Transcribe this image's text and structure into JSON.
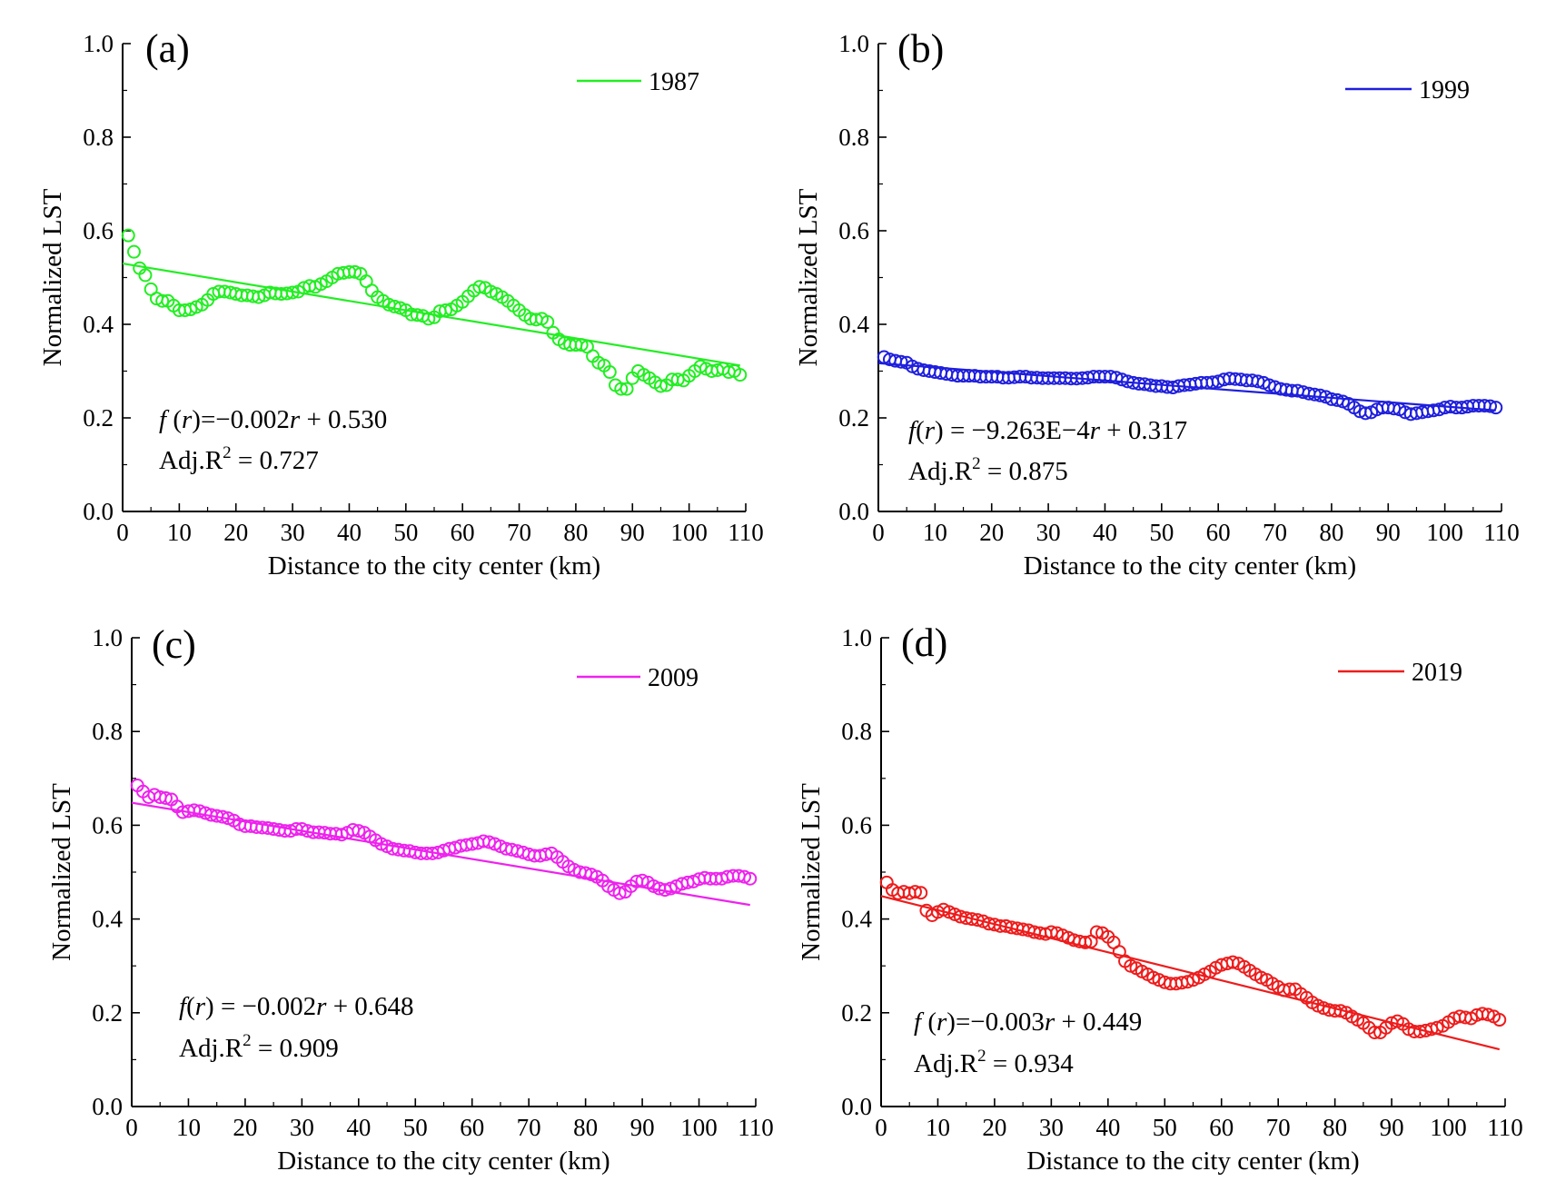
{
  "chart_data": [
    {
      "type": "scatter",
      "panel_label": "(a)",
      "xlabel": "Distance to the city center (km)",
      "ylabel": "Normalized LST",
      "xlim": [
        0,
        110
      ],
      "ylim": [
        0,
        1.0
      ],
      "xticks": [
        0,
        10,
        20,
        30,
        40,
        50,
        60,
        70,
        80,
        90,
        100,
        110
      ],
      "yticks": [
        0.0,
        0.2,
        0.4,
        0.6,
        0.8,
        1.0
      ],
      "xtick_labels": [
        "0",
        "10",
        "20",
        "30",
        "40",
        "50",
        "60",
        "70",
        "80",
        "90",
        "100",
        "110"
      ],
      "ytick_labels": [
        "0.0",
        "0.2",
        "0.4",
        "0.6",
        "0.8",
        "1.0"
      ],
      "legend": "1987",
      "color": "#22ee22",
      "fit": {
        "slope": -0.002,
        "intercept": 0.53
      },
      "annotation": {
        "formula": "f (r)=−0.002r + 0.530",
        "r2": "Adj.R² = 0.727"
      },
      "x": [
        1,
        2,
        3,
        4,
        5,
        6,
        7,
        8,
        9,
        10,
        11,
        12,
        13,
        14,
        15,
        16,
        17,
        18,
        19,
        20,
        21,
        22,
        23,
        24,
        25,
        26,
        27,
        28,
        29,
        30,
        31,
        32,
        33,
        34,
        35,
        36,
        37,
        38,
        39,
        40,
        41,
        42,
        43,
        44,
        45,
        46,
        47,
        48,
        49,
        50,
        51,
        52,
        53,
        54,
        55,
        56,
        57,
        58,
        59,
        60,
        61,
        62,
        63,
        64,
        65,
        66,
        67,
        68,
        69,
        70,
        71,
        72,
        73,
        74,
        75,
        76,
        77,
        78,
        79,
        80,
        81,
        82,
        83,
        84,
        85,
        86,
        87,
        88,
        89,
        90,
        91,
        92,
        93,
        94,
        95,
        96,
        97,
        98,
        99,
        100,
        101,
        102,
        103,
        104,
        105,
        106,
        107,
        108,
        109
      ],
      "values": [
        0.59,
        0.555,
        0.52,
        0.505,
        0.475,
        0.455,
        0.45,
        0.45,
        0.44,
        0.43,
        0.43,
        0.432,
        0.437,
        0.442,
        0.452,
        0.465,
        0.47,
        0.47,
        0.468,
        0.465,
        0.462,
        0.462,
        0.46,
        0.458,
        0.462,
        0.468,
        0.466,
        0.465,
        0.466,
        0.468,
        0.47,
        0.478,
        0.482,
        0.48,
        0.486,
        0.492,
        0.5,
        0.508,
        0.51,
        0.512,
        0.512,
        0.508,
        0.492,
        0.472,
        0.458,
        0.45,
        0.442,
        0.438,
        0.435,
        0.43,
        0.421,
        0.42,
        0.418,
        0.412,
        0.415,
        0.428,
        0.43,
        0.432,
        0.44,
        0.448,
        0.46,
        0.472,
        0.48,
        0.478,
        0.47,
        0.465,
        0.458,
        0.45,
        0.44,
        0.43,
        0.42,
        0.412,
        0.41,
        0.412,
        0.405,
        0.382,
        0.368,
        0.36,
        0.356,
        0.356,
        0.356,
        0.352,
        0.332,
        0.318,
        0.312,
        0.298,
        0.27,
        0.262,
        0.262,
        0.285,
        0.3,
        0.292,
        0.285,
        0.276,
        0.268,
        0.27,
        0.282,
        0.282,
        0.28,
        0.29,
        0.3,
        0.31,
        0.305,
        0.3,
        0.302,
        0.305,
        0.298,
        0.3,
        0.292
      ]
    },
    {
      "type": "scatter",
      "panel_label": "(b)",
      "xlabel": "Distance to the city center (km)",
      "ylabel": "Normalized LST",
      "xlim": [
        0,
        110
      ],
      "ylim": [
        0,
        1.0
      ],
      "xticks": [
        0,
        10,
        20,
        30,
        40,
        50,
        60,
        70,
        80,
        90,
        100,
        110
      ],
      "yticks": [
        0.0,
        0.2,
        0.4,
        0.6,
        0.8,
        1.0
      ],
      "xtick_labels": [
        "0",
        "10",
        "20",
        "30",
        "40",
        "50",
        "60",
        "70",
        "80",
        "90",
        "100",
        "110"
      ],
      "ytick_labels": [
        "0.0",
        "0.2",
        "0.4",
        "0.6",
        "0.8",
        "1.0"
      ],
      "legend": "1999",
      "color": "#1f1fdd",
      "fit": {
        "slope": -0.0009263,
        "intercept": 0.317
      },
      "annotation": {
        "formula": "f(r) = −9.263E−4r + 0.317",
        "r2": "Adj.R² = 0.875"
      },
      "x": [
        1,
        2,
        3,
        4,
        5,
        6,
        7,
        8,
        9,
        10,
        11,
        12,
        13,
        14,
        15,
        16,
        17,
        18,
        19,
        20,
        21,
        22,
        23,
        24,
        25,
        26,
        27,
        28,
        29,
        30,
        31,
        32,
        33,
        34,
        35,
        36,
        37,
        38,
        39,
        40,
        41,
        42,
        43,
        44,
        45,
        46,
        47,
        48,
        49,
        50,
        51,
        52,
        53,
        54,
        55,
        56,
        57,
        58,
        59,
        60,
        61,
        62,
        63,
        64,
        65,
        66,
        67,
        68,
        69,
        70,
        71,
        72,
        73,
        74,
        75,
        76,
        77,
        78,
        79,
        80,
        81,
        82,
        83,
        84,
        85,
        86,
        87,
        88,
        89,
        90,
        91,
        92,
        93,
        94,
        95,
        96,
        97,
        98,
        99,
        100,
        101,
        102,
        103,
        104,
        105,
        106,
        107,
        108,
        109
      ],
      "values": [
        0.33,
        0.325,
        0.322,
        0.32,
        0.318,
        0.31,
        0.305,
        0.302,
        0.3,
        0.298,
        0.296,
        0.294,
        0.292,
        0.29,
        0.29,
        0.29,
        0.29,
        0.288,
        0.288,
        0.288,
        0.288,
        0.286,
        0.286,
        0.287,
        0.288,
        0.288,
        0.286,
        0.286,
        0.285,
        0.285,
        0.285,
        0.285,
        0.285,
        0.284,
        0.284,
        0.285,
        0.286,
        0.288,
        0.288,
        0.288,
        0.288,
        0.286,
        0.282,
        0.278,
        0.275,
        0.273,
        0.272,
        0.27,
        0.268,
        0.268,
        0.266,
        0.265,
        0.268,
        0.27,
        0.271,
        0.273,
        0.275,
        0.275,
        0.276,
        0.278,
        0.282,
        0.284,
        0.283,
        0.282,
        0.28,
        0.28,
        0.278,
        0.275,
        0.27,
        0.266,
        0.262,
        0.26,
        0.258,
        0.258,
        0.255,
        0.252,
        0.25,
        0.248,
        0.245,
        0.24,
        0.238,
        0.235,
        0.23,
        0.222,
        0.214,
        0.21,
        0.212,
        0.218,
        0.222,
        0.222,
        0.22,
        0.218,
        0.212,
        0.208,
        0.21,
        0.212,
        0.214,
        0.216,
        0.218,
        0.222,
        0.224,
        0.222,
        0.222,
        0.224,
        0.226,
        0.226,
        0.226,
        0.225,
        0.222
      ]
    },
    {
      "type": "scatter",
      "panel_label": "(c)",
      "xlabel": "Distance to the city center (km)",
      "ylabel": "Normalized LST",
      "xlim": [
        0,
        110
      ],
      "ylim": [
        0,
        1.0
      ],
      "xticks": [
        0,
        10,
        20,
        30,
        40,
        50,
        60,
        70,
        80,
        90,
        100,
        110
      ],
      "yticks": [
        0.0,
        0.2,
        0.4,
        0.6,
        0.8,
        1.0
      ],
      "xtick_labels": [
        "0",
        "10",
        "20",
        "30",
        "40",
        "50",
        "60",
        "70",
        "80",
        "90",
        "100",
        "110"
      ],
      "ytick_labels": [
        "0.0",
        "0.2",
        "0.4",
        "0.6",
        "0.8",
        "1.0"
      ],
      "legend": "2009",
      "color": "#ee22ee",
      "fit": {
        "slope": -0.002,
        "intercept": 0.648
      },
      "annotation": {
        "formula": "f(r) = −0.002r + 0.648",
        "r2": "Adj.R² = 0.909"
      },
      "x": [
        1,
        2,
        3,
        4,
        5,
        6,
        7,
        8,
        9,
        10,
        11,
        12,
        13,
        14,
        15,
        16,
        17,
        18,
        19,
        20,
        21,
        22,
        23,
        24,
        25,
        26,
        27,
        28,
        29,
        30,
        31,
        32,
        33,
        34,
        35,
        36,
        37,
        38,
        39,
        40,
        41,
        42,
        43,
        44,
        45,
        46,
        47,
        48,
        49,
        50,
        51,
        52,
        53,
        54,
        55,
        56,
        57,
        58,
        59,
        60,
        61,
        62,
        63,
        64,
        65,
        66,
        67,
        68,
        69,
        70,
        71,
        72,
        73,
        74,
        75,
        76,
        77,
        78,
        79,
        80,
        81,
        82,
        83,
        84,
        85,
        86,
        87,
        88,
        89,
        90,
        91,
        92,
        93,
        94,
        95,
        96,
        97,
        98,
        99,
        100,
        101,
        102,
        103,
        104,
        105,
        106,
        107,
        108,
        109
      ],
      "values": [
        0.685,
        0.672,
        0.66,
        0.665,
        0.66,
        0.658,
        0.655,
        0.64,
        0.628,
        0.63,
        0.632,
        0.63,
        0.626,
        0.622,
        0.62,
        0.618,
        0.615,
        0.61,
        0.602,
        0.598,
        0.598,
        0.596,
        0.595,
        0.594,
        0.592,
        0.59,
        0.588,
        0.588,
        0.592,
        0.592,
        0.588,
        0.585,
        0.585,
        0.584,
        0.582,
        0.582,
        0.58,
        0.584,
        0.59,
        0.588,
        0.584,
        0.576,
        0.568,
        0.56,
        0.555,
        0.55,
        0.548,
        0.546,
        0.545,
        0.542,
        0.54,
        0.54,
        0.54,
        0.542,
        0.546,
        0.55,
        0.552,
        0.556,
        0.558,
        0.56,
        0.562,
        0.566,
        0.564,
        0.56,
        0.555,
        0.55,
        0.548,
        0.545,
        0.542,
        0.538,
        0.535,
        0.535,
        0.538,
        0.54,
        0.532,
        0.522,
        0.512,
        0.505,
        0.5,
        0.498,
        0.495,
        0.49,
        0.482,
        0.47,
        0.462,
        0.455,
        0.458,
        0.47,
        0.48,
        0.482,
        0.478,
        0.47,
        0.465,
        0.462,
        0.465,
        0.47,
        0.475,
        0.478,
        0.48,
        0.485,
        0.488,
        0.486,
        0.486,
        0.486,
        0.49,
        0.492,
        0.492,
        0.49,
        0.486
      ]
    },
    {
      "type": "scatter",
      "panel_label": "(d)",
      "xlabel": "Distance to the city center (km)",
      "ylabel": "Normalized LST",
      "xlim": [
        0,
        110
      ],
      "ylim": [
        0,
        1.0
      ],
      "xticks": [
        0,
        10,
        20,
        30,
        40,
        50,
        60,
        70,
        80,
        90,
        100,
        110
      ],
      "yticks": [
        0.0,
        0.2,
        0.4,
        0.6,
        0.8,
        1.0
      ],
      "xtick_labels": [
        "0",
        "10",
        "20",
        "30",
        "40",
        "50",
        "60",
        "70",
        "80",
        "90",
        "100",
        "110"
      ],
      "ytick_labels": [
        "0.0",
        "0.2",
        "0.4",
        "0.6",
        "0.8",
        "1.0"
      ],
      "legend": "2019",
      "color": "#ee1c1c",
      "fit": {
        "slope": -0.003,
        "intercept": 0.449
      },
      "annotation": {
        "formula": "f (r)=−0.003r + 0.449",
        "r2": "Adj.R² = 0.934"
      },
      "x": [
        1,
        2,
        3,
        4,
        5,
        6,
        7,
        8,
        9,
        10,
        11,
        12,
        13,
        14,
        15,
        16,
        17,
        18,
        19,
        20,
        21,
        22,
        23,
        24,
        25,
        26,
        27,
        28,
        29,
        30,
        31,
        32,
        33,
        34,
        35,
        36,
        37,
        38,
        39,
        40,
        41,
        42,
        43,
        44,
        45,
        46,
        47,
        48,
        49,
        50,
        51,
        52,
        53,
        54,
        55,
        56,
        57,
        58,
        59,
        60,
        61,
        62,
        63,
        64,
        65,
        66,
        67,
        68,
        69,
        70,
        71,
        72,
        73,
        74,
        75,
        76,
        77,
        78,
        79,
        80,
        81,
        82,
        83,
        84,
        85,
        86,
        87,
        88,
        89,
        90,
        91,
        92,
        93,
        94,
        95,
        96,
        97,
        98,
        99,
        100,
        101,
        102,
        103,
        104,
        105,
        106,
        107,
        108,
        109
      ],
      "values": [
        0.478,
        0.462,
        0.455,
        0.458,
        0.455,
        0.458,
        0.456,
        0.418,
        0.408,
        0.415,
        0.42,
        0.415,
        0.41,
        0.405,
        0.402,
        0.4,
        0.398,
        0.395,
        0.39,
        0.388,
        0.385,
        0.385,
        0.382,
        0.38,
        0.378,
        0.376,
        0.372,
        0.37,
        0.368,
        0.372,
        0.37,
        0.365,
        0.36,
        0.355,
        0.352,
        0.35,
        0.352,
        0.372,
        0.37,
        0.362,
        0.35,
        0.33,
        0.31,
        0.3,
        0.295,
        0.288,
        0.282,
        0.275,
        0.27,
        0.265,
        0.262,
        0.262,
        0.264,
        0.266,
        0.27,
        0.275,
        0.282,
        0.288,
        0.296,
        0.302,
        0.305,
        0.308,
        0.305,
        0.298,
        0.29,
        0.282,
        0.275,
        0.27,
        0.262,
        0.255,
        0.248,
        0.25,
        0.25,
        0.24,
        0.232,
        0.222,
        0.215,
        0.21,
        0.206,
        0.204,
        0.204,
        0.2,
        0.192,
        0.185,
        0.178,
        0.168,
        0.158,
        0.158,
        0.168,
        0.178,
        0.182,
        0.176,
        0.165,
        0.16,
        0.16,
        0.162,
        0.165,
        0.168,
        0.172,
        0.18,
        0.188,
        0.192,
        0.19,
        0.188,
        0.195,
        0.198,
        0.196,
        0.192,
        0.185
      ]
    }
  ]
}
